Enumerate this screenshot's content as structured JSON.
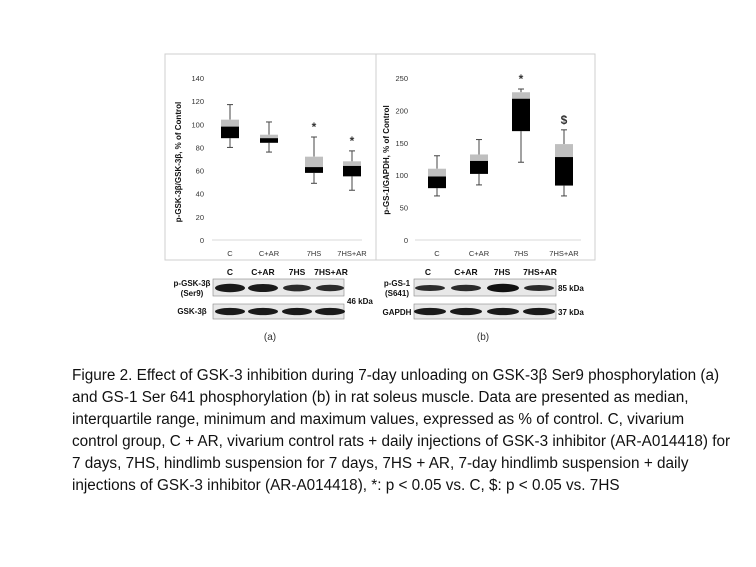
{
  "panel_a": {
    "label": "(a)",
    "ylabel": "p-GSK-3β/GSK-3β, % of Control",
    "blots": [
      {
        "label_line1": "p-GSK-3β",
        "label_line2": "(Ser9)",
        "kda": "46 kDa"
      },
      {
        "label_line1": "GSK-3β",
        "label_line2": "",
        "kda": ""
      }
    ]
  },
  "panel_b": {
    "label": "(b)",
    "ylabel": "p-GS-1/GAPDH, % of Control",
    "blots": [
      {
        "label_line1": "p-GS-1",
        "label_line2": "(S641)",
        "kda": "85 kDa"
      },
      {
        "label_line1": "GAPDH",
        "label_line2": "",
        "kda": "37 kDa"
      }
    ]
  },
  "caption": "Figure 2. Effect of GSK-3 inhibition during 7-day unloading on GSK-3β Ser9 phosphorylation (a) and GS-1 Ser 641 phosphorylation (b) in rat soleus muscle. Data are presented as median, interquartile range, minimum and maximum values, expressed as % of control. C, vivarium control group, C + AR, vivarium control rats + daily injections of GSK-3 inhibitor (AR-A014418) for 7 days, 7HS, hindlimb suspension for 7 days, 7HS + AR, 7-day hindlimb suspension + daily injections of GSK-3 inhibitor (AR-A014418), *: p < 0.05 vs. C, $: p < 0.05 vs. 7HS",
  "chart_data": [
    {
      "type": "box",
      "title": "",
      "xlabel": "",
      "ylabel": "p-GSK-3β/GSK-3β, % of Control",
      "ylim": [
        0,
        140
      ],
      "yticks": [
        0,
        20,
        40,
        60,
        80,
        100,
        120,
        140
      ],
      "categories": [
        "C",
        "C+AR",
        "7HS",
        "7HS+AR"
      ],
      "boxes": [
        {
          "min": 80,
          "q1": 88,
          "median": 98,
          "q3": 104,
          "max": 117,
          "annotation": ""
        },
        {
          "min": 76,
          "q1": 84,
          "median": 88,
          "q3": 91,
          "max": 102,
          "annotation": ""
        },
        {
          "min": 49,
          "q1": 58,
          "median": 63,
          "q3": 72,
          "max": 89,
          "annotation": "*"
        },
        {
          "min": 43,
          "q1": 55,
          "median": 64,
          "q3": 68,
          "max": 77,
          "annotation": "*"
        }
      ],
      "grid": false,
      "colors": {
        "lower": "#000000",
        "upper": "#bfbfbf"
      }
    },
    {
      "type": "box",
      "title": "",
      "xlabel": "",
      "ylabel": "p-GS-1/GAPDH, % of Control",
      "ylim": [
        0,
        250
      ],
      "yticks": [
        0,
        50,
        100,
        150,
        200,
        250
      ],
      "categories": [
        "C",
        "C+AR",
        "7HS",
        "7HS+AR"
      ],
      "boxes": [
        {
          "min": 68,
          "q1": 80,
          "median": 98,
          "q3": 110,
          "max": 130,
          "annotation": ""
        },
        {
          "min": 85,
          "q1": 102,
          "median": 122,
          "q3": 132,
          "max": 155,
          "annotation": ""
        },
        {
          "min": 120,
          "q1": 168,
          "median": 218,
          "q3": 228,
          "max": 233,
          "annotation": "*"
        },
        {
          "min": 68,
          "q1": 84,
          "median": 128,
          "q3": 148,
          "max": 170,
          "annotation": "$"
        }
      ],
      "grid": false,
      "colors": {
        "lower": "#000000",
        "upper": "#bfbfbf"
      }
    }
  ]
}
